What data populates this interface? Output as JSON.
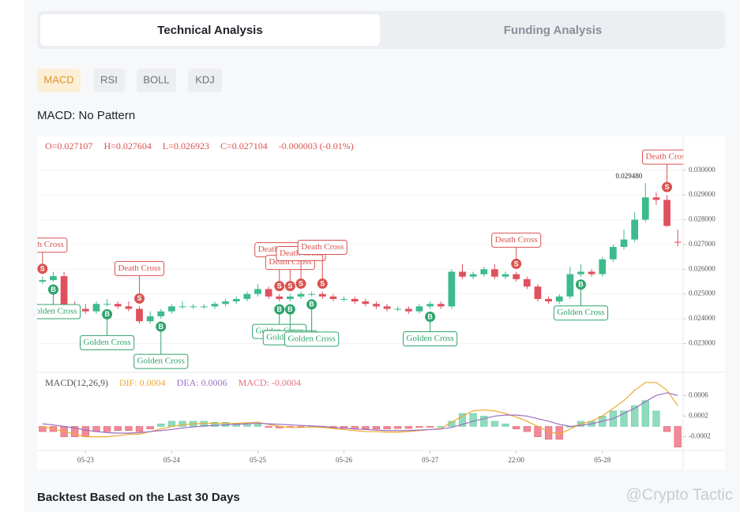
{
  "tabs": [
    "Technical Analysis",
    "Funding Analysis"
  ],
  "indicators": [
    "MACD",
    "RSI",
    "BOLL",
    "KDJ"
  ],
  "pattern_title": "MACD: No Pattern",
  "footer_title": "Backtest Based on the Last 30 Days",
  "watermark": "@Crypto Tactic",
  "chart_data": {
    "type": "candlestick",
    "ohlc_header": [
      "O=0.027107",
      "H=0.027604",
      "L=0.026923",
      "C=0.027104",
      "-0.000003 (-0.01%)"
    ],
    "categories": [
      null,
      null,
      null,
      null,
      "05-23",
      null,
      null,
      null,
      null,
      null,
      null,
      null,
      "05-24",
      null,
      null,
      null,
      null,
      null,
      null,
      null,
      "05-25",
      null,
      null,
      null,
      null,
      null,
      null,
      null,
      "05-26",
      null,
      null,
      null,
      null,
      null,
      null,
      null,
      "05-27",
      null,
      null,
      null,
      null,
      null,
      null,
      null,
      "22:00",
      null,
      null,
      null,
      null,
      null,
      null,
      null,
      "05-28",
      null,
      null,
      null,
      null,
      null,
      null,
      null
    ],
    "open": [
      0.0255,
      0.02556,
      0.02572,
      0.0245,
      0.0244,
      0.0243,
      0.0246,
      0.0246,
      0.0245,
      0.0244,
      0.0239,
      0.0241,
      0.0243,
      0.0245,
      0.0245,
      0.0245,
      0.0245,
      0.0246,
      0.0247,
      0.0248,
      0.025,
      0.0252,
      0.0249,
      0.0248,
      0.0249,
      0.025,
      0.025,
      0.0249,
      0.0248,
      0.0248,
      0.0247,
      0.0246,
      0.0245,
      0.0244,
      0.0244,
      0.0243,
      0.0245,
      0.0246,
      0.0245,
      0.0259,
      0.0257,
      0.0258,
      0.026,
      0.0257,
      0.0258,
      0.0256,
      0.0253,
      0.0248,
      0.0247,
      0.0249,
      0.0258,
      0.0259,
      0.0258,
      0.0264,
      0.0269,
      0.0272,
      0.028,
      0.0289,
      0.0288,
      0.027107
    ],
    "high": [
      0.0257,
      0.0259,
      0.0259,
      0.0247,
      0.0246,
      0.0247,
      0.0248,
      0.0247,
      0.0247,
      0.0245,
      0.0243,
      0.0244,
      0.0246,
      0.0247,
      0.0246,
      0.0246,
      0.0247,
      0.0248,
      0.0249,
      0.0251,
      0.0254,
      0.0253,
      0.025,
      0.025,
      0.0251,
      0.0251,
      0.0251,
      0.025,
      0.0249,
      0.0249,
      0.0248,
      0.0247,
      0.0246,
      0.0245,
      0.0245,
      0.0246,
      0.0247,
      0.0247,
      0.026,
      0.0262,
      0.0259,
      0.0261,
      0.0262,
      0.0259,
      0.0259,
      0.0257,
      0.0254,
      0.0249,
      0.025,
      0.0261,
      0.0262,
      0.026,
      0.0265,
      0.027,
      0.0276,
      0.0283,
      0.02948,
      0.0291,
      0.029,
      0.027604
    ],
    "low": [
      0.0254,
      0.0255,
      0.0244,
      0.0243,
      0.0242,
      0.0242,
      0.0245,
      0.0244,
      0.0243,
      0.0238,
      0.0238,
      0.024,
      0.0242,
      0.0244,
      0.0244,
      0.0244,
      0.0244,
      0.0245,
      0.0246,
      0.0247,
      0.0249,
      0.0248,
      0.0247,
      0.0247,
      0.0248,
      0.0249,
      0.0248,
      0.0247,
      0.0247,
      0.0246,
      0.0245,
      0.0244,
      0.0243,
      0.0243,
      0.0242,
      0.0242,
      0.0244,
      0.0244,
      0.0244,
      0.0256,
      0.0256,
      0.0257,
      0.0256,
      0.0256,
      0.0255,
      0.0252,
      0.0247,
      0.0246,
      0.0246,
      0.0248,
      0.0257,
      0.0257,
      0.0257,
      0.0263,
      0.0268,
      0.0271,
      0.0279,
      0.0286,
      0.0277,
      0.026923
    ],
    "close": [
      0.02556,
      0.02572,
      0.0245,
      0.0244,
      0.0243,
      0.0246,
      0.0246,
      0.0245,
      0.0244,
      0.0239,
      0.0241,
      0.0243,
      0.0245,
      0.0245,
      0.0245,
      0.0245,
      0.0246,
      0.0247,
      0.0248,
      0.025,
      0.0252,
      0.0249,
      0.0248,
      0.0249,
      0.025,
      0.025,
      0.0249,
      0.0248,
      0.0248,
      0.0247,
      0.0246,
      0.0245,
      0.0244,
      0.0244,
      0.0243,
      0.0245,
      0.0246,
      0.0245,
      0.0259,
      0.0257,
      0.0258,
      0.026,
      0.0257,
      0.0258,
      0.0256,
      0.0253,
      0.0248,
      0.0247,
      0.0249,
      0.0258,
      0.0259,
      0.0258,
      0.0264,
      0.0269,
      0.0272,
      0.028,
      0.0289,
      0.0288,
      0.02775,
      0.027104
    ],
    "up_color": "#3dbb8c",
    "down_color": "#e0505e",
    "ylim": [
      0.0219,
      0.0305
    ],
    "yticks": [
      {
        "value": 0.03,
        "label": "0.030000"
      },
      {
        "value": 0.029,
        "label": "0.029000"
      },
      {
        "value": 0.028,
        "label": "0.028000"
      },
      {
        "value": 0.027,
        "label": "0.027000"
      },
      {
        "value": 0.026,
        "label": "0.026000"
      },
      {
        "value": 0.025,
        "label": "0.025000"
      },
      {
        "value": 0.024,
        "label": "0.024000"
      },
      {
        "value": 0.023,
        "label": "0.023000"
      }
    ],
    "grid": true,
    "max_label": {
      "value": 0.02948,
      "label": "0.029480"
    },
    "signals": [
      {
        "candle": 0,
        "kind": "death",
        "label": "Death Cross",
        "letter": "S"
      },
      {
        "candle": 1,
        "kind": "golden",
        "label": "Golden Cross",
        "letter": "B"
      },
      {
        "candle": 6,
        "kind": "golden",
        "label": "Golden Cross",
        "letter": "B"
      },
      {
        "candle": 9,
        "kind": "death",
        "label": "Death Cross",
        "letter": "S"
      },
      {
        "candle": 11,
        "kind": "golden",
        "label": "Golden Cross",
        "letter": "B"
      },
      {
        "candle": 22,
        "kind": "death",
        "label": "Death Cross",
        "letter": "S"
      },
      {
        "candle": 23,
        "kind": "death",
        "label": "Death Cross",
        "letter": "S"
      },
      {
        "candle": 22,
        "kind": "golden",
        "label": "Golden Cross",
        "letter": "B"
      },
      {
        "candle": 23,
        "kind": "golden",
        "label": "Golden Cross",
        "letter": "B"
      },
      {
        "candle": 24,
        "kind": "death",
        "label": "Death Cross",
        "letter": "S"
      },
      {
        "candle": 25,
        "kind": "golden",
        "label": "Golden Cross",
        "letter": "B"
      },
      {
        "candle": 26,
        "kind": "death",
        "label": "Death Cross",
        "letter": "S"
      },
      {
        "candle": 36,
        "kind": "golden",
        "label": "Golden Cross",
        "letter": "B"
      },
      {
        "candle": 44,
        "kind": "death",
        "label": "Death Cross",
        "letter": "S"
      },
      {
        "candle": 50,
        "kind": "golden",
        "label": "Golden Cross",
        "letter": "B"
      },
      {
        "candle": 58,
        "kind": "death",
        "label": "Death Cross",
        "letter": "S"
      }
    ],
    "macd": {
      "legend": [
        "MACD(12,26,9)",
        "DIF: 0.0004",
        "DEA: 0.0006",
        "MACD: -0.0004"
      ],
      "ylim": [
        -0.00045,
        0.001
      ],
      "yticks": [
        0.0006,
        0.0002,
        -0.0002
      ],
      "hist": [
        -0.0001,
        -0.0001,
        -0.0002,
        -0.0002,
        -0.0002,
        -0.0001,
        -0.0001,
        -8e-05,
        -8e-05,
        -0.0001,
        -5e-05,
        5e-05,
        0.0001,
        0.0001,
        0.0001,
        0.0001,
        8e-05,
        8e-05,
        6e-05,
        6e-05,
        4e-05,
        -2e-05,
        -3e-05,
        -2e-05,
        -1e-05,
        1e-05,
        -2e-05,
        -3e-05,
        -4e-05,
        -5e-05,
        -5e-05,
        -5e-05,
        -5e-05,
        -4e-05,
        -4e-05,
        -2e-05,
        -1e-05,
        0.0,
        0.0001,
        0.00025,
        0.00025,
        0.0002,
        0.0001,
        5e-05,
        -5e-05,
        -0.0001,
        -0.0002,
        -0.00025,
        -0.00025,
        0.0,
        0.0001,
        0.0001,
        0.0002,
        0.0003,
        0.0003,
        0.0004,
        0.0005,
        0.0003,
        -0.0001,
        -0.0004
      ],
      "series": [
        {
          "name": "DIF",
          "color": "#f0a830",
          "values": [
            0.0,
            -5e-05,
            -0.0001,
            -0.00015,
            -0.0002,
            -0.0002,
            -0.0002,
            -0.00018,
            -0.00015,
            -0.00015,
            -0.0001,
            -5e-05,
            0.0,
            3e-05,
            5e-05,
            6e-05,
            6e-05,
            6e-05,
            6e-05,
            7e-05,
            8e-05,
            4e-05,
            0.0,
            -2e-05,
            -2e-05,
            -1e-05,
            -2e-05,
            -4e-05,
            -6e-05,
            -8e-05,
            -0.0001,
            -0.0001,
            -0.00011,
            -0.00011,
            -0.0001,
            -8e-05,
            -6e-05,
            -4e-05,
            8e-05,
            0.0002,
            0.0003,
            0.00032,
            0.0003,
            0.00025,
            0.00018,
            0.0001,
            0.0,
            -0.0001,
            -0.00015,
            -5e-05,
            5e-05,
            0.0001,
            0.0002,
            0.00035,
            0.0005,
            0.0007,
            0.00085,
            0.00085,
            0.0007,
            0.0004
          ]
        },
        {
          "name": "DEA",
          "color": "#9b6fc0",
          "values": [
            5e-05,
            3e-05,
            0.0,
            -3e-05,
            -7e-05,
            -0.0001,
            -0.00012,
            -0.00013,
            -0.00013,
            -0.00012,
            -0.0001,
            -8e-05,
            -6e-05,
            -3e-05,
            -1e-05,
            1e-05,
            2e-05,
            3e-05,
            4e-05,
            5e-05,
            6e-05,
            5e-05,
            4e-05,
            3e-05,
            2e-05,
            1e-05,
            0.0,
            -2e-05,
            -3e-05,
            -5e-05,
            -6e-05,
            -7e-05,
            -8e-05,
            -8e-05,
            -8e-05,
            -7e-05,
            -6e-05,
            -5e-05,
            -2e-05,
            4e-05,
            0.0001,
            0.00015,
            0.0002,
            0.00022,
            0.00022,
            0.0002,
            0.00015,
            0.0001,
            4e-05,
            0.0,
            2e-05,
            5e-05,
            0.0001,
            0.00015,
            0.00025,
            0.00035,
            0.00048,
            0.0006,
            0.00065,
            0.0006
          ]
        }
      ]
    }
  }
}
